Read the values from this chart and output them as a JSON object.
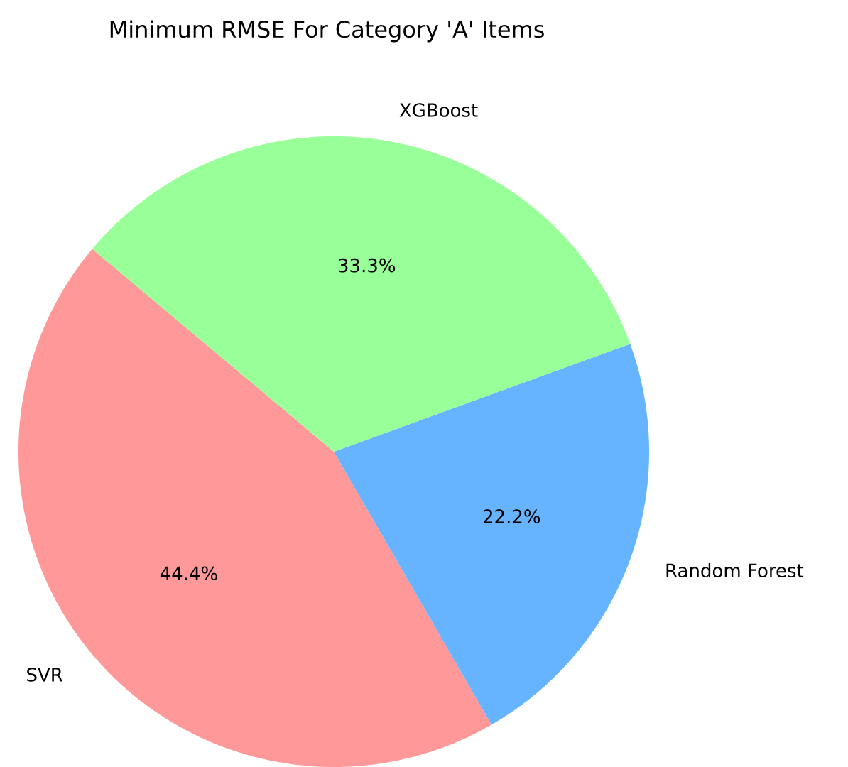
{
  "chart_data": {
    "type": "pie",
    "title": "Minimum RMSE For Category 'A' Items",
    "categories": [
      "SVR",
      "Random Forest",
      "XGBoost"
    ],
    "values": [
      44.4,
      22.2,
      33.3
    ],
    "value_labels": [
      "44.4%",
      "22.2%",
      "33.3%"
    ],
    "colors": [
      "#ff9999",
      "#66b3ff",
      "#99ff99"
    ]
  }
}
